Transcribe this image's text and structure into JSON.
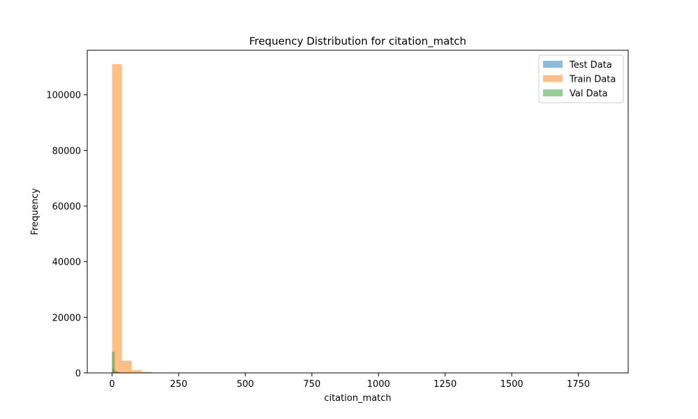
{
  "chart_data": {
    "type": "bar",
    "title": "Frequency Distribution for citation_match",
    "xlabel": "citation_match",
    "ylabel": "Frequency",
    "xlim": [
      -93,
      1937
    ],
    "ylim": [
      0,
      116000
    ],
    "xticks": [
      0,
      250,
      500,
      750,
      1000,
      1250,
      1500,
      1750
    ],
    "yticks": [
      0,
      20000,
      40000,
      60000,
      80000,
      100000
    ],
    "legend_position": "top-right",
    "grid": false,
    "series": [
      {
        "name": "Test Data",
        "color": "#1f77b4",
        "bins": [
          {
            "x0": 0,
            "x1": 10,
            "value": 1500
          },
          {
            "x0": 10,
            "x1": 20,
            "value": 300
          },
          {
            "x0": 20,
            "x1": 40,
            "value": 100
          }
        ]
      },
      {
        "name": "Train Data",
        "color": "#ff7f0e",
        "bins": [
          {
            "x0": 0,
            "x1": 37,
            "value": 111000
          },
          {
            "x0": 37,
            "x1": 74,
            "value": 4400
          },
          {
            "x0": 74,
            "x1": 111,
            "value": 1000
          },
          {
            "x0": 111,
            "x1": 148,
            "value": 350
          },
          {
            "x0": 148,
            "x1": 185,
            "value": 120
          },
          {
            "x0": 185,
            "x1": 222,
            "value": 50
          }
        ]
      },
      {
        "name": "Val Data",
        "color": "#2ca02c",
        "bins": [
          {
            "x0": 0,
            "x1": 10,
            "value": 7600
          },
          {
            "x0": 10,
            "x1": 20,
            "value": 700
          },
          {
            "x0": 20,
            "x1": 30,
            "value": 350
          },
          {
            "x0": 30,
            "x1": 50,
            "value": 150
          }
        ]
      }
    ]
  }
}
